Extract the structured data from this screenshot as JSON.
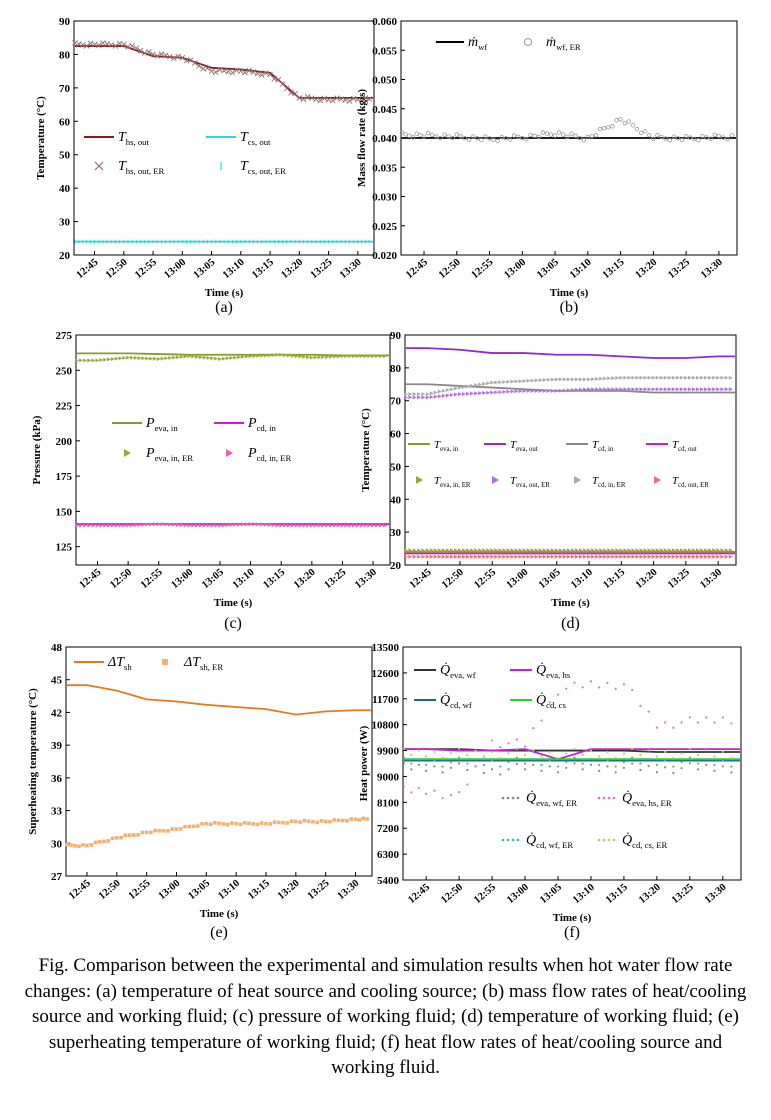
{
  "caption": "Fig. Comparison between the experimental and simulation results when hot water flow rate changes: (a) temperature of heat source and cooling source; (b) mass flow rates of heat/cooling source and working fluid; (c) pressure of working fluid; (d) temperature of working fluid; (e) superheating temperature of working fluid; (f) heat flow rates of heat/cooling source and working fluid.",
  "time_ticks": [
    "12:45",
    "12:50",
    "12:55",
    "13:00",
    "13:05",
    "13:10",
    "13:15",
    "13:20",
    "13:25",
    "13:30"
  ],
  "colors": {
    "dark_red": "#8b1a1a",
    "cyan": "#33d6d6",
    "gray": "#888888",
    "olive": "#8a9a2a",
    "magenta": "#d01cd0",
    "purple": "#8a2bd6",
    "orange": "#e07b1f",
    "light_orange": "#f5b070",
    "green": "#2ecc2e",
    "teal": "#1a6e7a",
    "dark_gray": "#333333"
  },
  "chart_data": [
    {
      "id": "a",
      "type": "line",
      "panel_label": "(a)",
      "xlabel": "Time (s)",
      "ylabel": "Temperature (°C)",
      "ylim": [
        20,
        90
      ],
      "yticks": [
        "20",
        "30",
        "40",
        "50",
        "60",
        "70",
        "80",
        "90"
      ],
      "x": [
        "12:45",
        "12:50",
        "12:55",
        "13:00",
        "13:05",
        "13:10",
        "13:15",
        "13:20",
        "13:25",
        "13:30"
      ],
      "series": [
        {
          "name": "T",
          "sub": "hs, out",
          "style": "line",
          "color": "#8b1a1a",
          "values": [
            82.5,
            82.5,
            79.5,
            79,
            76,
            75.5,
            74.5,
            67,
            67,
            67
          ]
        },
        {
          "name": "T",
          "sub": "cs, out",
          "style": "line",
          "color": "#33d6d6",
          "values": [
            24,
            24,
            24,
            24,
            24,
            24,
            24,
            24,
            24,
            24
          ]
        },
        {
          "name": "T",
          "sub": "hs, out, ER",
          "style": "x",
          "color": "#8a7070",
          "values": [
            83,
            83,
            80,
            79,
            75,
            75,
            74,
            67,
            66.5,
            66.5
          ]
        },
        {
          "name": "T",
          "sub": "cs, out, ER",
          "style": "tick",
          "color": "#33d6d6",
          "values": [
            24,
            24,
            24,
            24,
            24,
            24,
            24,
            24,
            24,
            24
          ]
        }
      ]
    },
    {
      "id": "b",
      "type": "line",
      "panel_label": "(b)",
      "xlabel": "Time (s)",
      "ylabel": "Mass flow rate (kg/s)",
      "ylim": [
        0.02,
        0.06
      ],
      "yticks": [
        "0.020",
        "0.025",
        "0.030",
        "0.035",
        "0.040",
        "0.045",
        "0.050",
        "0.055",
        "0.060"
      ],
      "x": [
        "12:45",
        "12:50",
        "12:55",
        "13:00",
        "13:05",
        "13:10",
        "13:15",
        "13:20",
        "13:25",
        "13:30"
      ],
      "series": [
        {
          "name": "ṁ",
          "sub": "wf",
          "style": "line",
          "color": "#000000",
          "values": [
            0.04,
            0.04,
            0.04,
            0.04,
            0.04,
            0.04,
            0.04,
            0.04,
            0.04,
            0.04
          ]
        },
        {
          "name": "ṁ",
          "sub": "wf, ER",
          "style": "star",
          "color": "#999999",
          "values": [
            0.0405,
            0.0402,
            0.0398,
            0.0401,
            0.0408,
            0.0399,
            0.0432,
            0.0401,
            0.0399,
            0.0402
          ]
        }
      ]
    },
    {
      "id": "c",
      "type": "line",
      "panel_label": "(c)",
      "xlabel": "Time (s)",
      "ylabel": "Pressure (kPa)",
      "ylim": [
        112,
        275
      ],
      "yticks": [
        "125",
        "150",
        "175",
        "200",
        "225",
        "250",
        "275"
      ],
      "x": [
        "12:45",
        "12:50",
        "12:55",
        "13:00",
        "13:05",
        "13:10",
        "13:15",
        "13:20",
        "13:25",
        "13:30"
      ],
      "series": [
        {
          "name": "P",
          "sub": "eva, in",
          "style": "line",
          "color": "#8a9a2a",
          "values": [
            262,
            262,
            261.5,
            261,
            261,
            261,
            261,
            261,
            260.5,
            260.5
          ]
        },
        {
          "name": "P",
          "sub": "cd, in",
          "style": "line",
          "color": "#d01cd0",
          "values": [
            141,
            141,
            141,
            141,
            141,
            141,
            141,
            141,
            141,
            141
          ]
        },
        {
          "name": "P",
          "sub": "eva, in, ER",
          "style": "tri",
          "color": "#9aaa3a",
          "values": [
            257,
            259,
            258,
            260,
            258,
            260,
            261,
            259,
            260,
            260
          ]
        },
        {
          "name": "P",
          "sub": "cd, in, ER",
          "style": "tri",
          "color": "#e060c0",
          "values": [
            140,
            140,
            141,
            140,
            140,
            141,
            140,
            140,
            140,
            140
          ]
        }
      ]
    },
    {
      "id": "d",
      "type": "line",
      "panel_label": "(d)",
      "xlabel": "Time (s)",
      "ylabel": "Temperature (°C)",
      "ylim": [
        20,
        90
      ],
      "yticks": [
        "20",
        "30",
        "40",
        "50",
        "60",
        "70",
        "80",
        "90"
      ],
      "x": [
        "12:45",
        "12:50",
        "12:55",
        "13:00",
        "13:05",
        "13:10",
        "13:15",
        "13:20",
        "13:25",
        "13:30"
      ],
      "series": [
        {
          "name": "T",
          "sub": "eva, in",
          "style": "line",
          "color": "#8a9a2a",
          "values": [
            24,
            24,
            24,
            24,
            24,
            24,
            24,
            24,
            24,
            24
          ]
        },
        {
          "name": "T",
          "sub": "eva, out",
          "style": "line",
          "color": "#8a2bd6",
          "values": [
            86,
            85.5,
            84.5,
            84.5,
            84,
            84,
            83.5,
            83,
            83,
            83.5
          ]
        },
        {
          "name": "T",
          "sub": "cd, in",
          "style": "line",
          "color": "#888888",
          "values": [
            75,
            74.5,
            74,
            73.5,
            73,
            73,
            73,
            72.5,
            72.5,
            72.5
          ]
        },
        {
          "name": "T",
          "sub": "cd, out",
          "style": "line",
          "color": "#d01cd0",
          "values": [
            23.5,
            23.5,
            23.5,
            23.5,
            23.5,
            23.5,
            23.5,
            23.5,
            23.5,
            23.5
          ]
        },
        {
          "name": "T",
          "sub": "eva, in, ER",
          "style": "tri",
          "color": "#9aaa3a",
          "values": [
            24.5,
            24.5,
            24.5,
            24.5,
            24.5,
            24.5,
            24.5,
            24.5,
            24.5,
            24.5
          ]
        },
        {
          "name": "T",
          "sub": "eva, out, ER",
          "style": "tri",
          "color": "#b070e0",
          "values": [
            71,
            72,
            72.5,
            73,
            73,
            73.5,
            73.5,
            73.5,
            73.5,
            73.5
          ]
        },
        {
          "name": "T",
          "sub": "cd, in, ER",
          "style": "tri",
          "color": "#aaaaaa",
          "values": [
            72,
            74,
            75.5,
            76,
            76.5,
            76.5,
            77,
            77,
            77,
            77
          ]
        },
        {
          "name": "T",
          "sub": "cd, out, ER",
          "style": "tri",
          "color": "#f07070",
          "values": [
            22.5,
            22.5,
            22.5,
            22.5,
            22.5,
            22.5,
            22.5,
            22.5,
            22.5,
            22.5
          ]
        }
      ]
    },
    {
      "id": "e",
      "type": "line",
      "panel_label": "(e)",
      "xlabel": "Time (s)",
      "ylabel": "Superheating temperature (°C)",
      "ylim": [
        27,
        48
      ],
      "yticks": [
        "27",
        "30",
        "33",
        "36",
        "39",
        "42",
        "45",
        "48"
      ],
      "x": [
        "12:45",
        "12:50",
        "12:55",
        "13:00",
        "13:05",
        "13:10",
        "13:15",
        "13:20",
        "13:25",
        "13:30"
      ],
      "series": [
        {
          "name": "ΔT",
          "sub": "sh",
          "style": "line",
          "color": "#e07b1f",
          "values": [
            44.5,
            44,
            43.2,
            43,
            42.7,
            42.5,
            42.3,
            41.8,
            42.1,
            42.2
          ]
        },
        {
          "name": "ΔT",
          "sub": "sh, ER",
          "style": "square",
          "color": "#f5b070",
          "values": [
            29.8,
            30.5,
            31,
            31.3,
            31.8,
            31.8,
            31.8,
            32,
            32,
            32.2
          ]
        }
      ]
    },
    {
      "id": "f",
      "type": "line",
      "panel_label": "(f)",
      "xlabel": "Time (s)",
      "ylabel": "Heat power (W)",
      "ylim": [
        5400,
        13500
      ],
      "yticks": [
        "5400",
        "6300",
        "7200",
        "8100",
        "9000",
        "9900",
        "10800",
        "11700",
        "12600",
        "13500"
      ],
      "x": [
        "12:45",
        "12:50",
        "12:55",
        "13:00",
        "13:05",
        "13:10",
        "13:15",
        "13:20",
        "13:25",
        "13:30"
      ],
      "series": [
        {
          "name": "Q̇",
          "sub": "eva, wf",
          "style": "line",
          "color": "#333333",
          "values": [
            9950,
            9950,
            9900,
            9900,
            9900,
            9900,
            9900,
            9850,
            9850,
            9850
          ]
        },
        {
          "name": "Q̇",
          "sub": "eva, hs",
          "style": "line",
          "color": "#d01cd0",
          "values": [
            9950,
            9900,
            9900,
            9950,
            9600,
            9950,
            9950,
            9950,
            9950,
            9950
          ]
        },
        {
          "name": "Q̇",
          "sub": "cd, wf",
          "style": "line",
          "color": "#1a6e7a",
          "values": [
            9550,
            9550,
            9550,
            9550,
            9550,
            9550,
            9550,
            9550,
            9550,
            9550
          ]
        },
        {
          "name": "Q̇",
          "sub": "cd, cs",
          "style": "line",
          "color": "#2ecc2e",
          "values": [
            9600,
            9600,
            9600,
            9600,
            9600,
            9600,
            9600,
            9600,
            9600,
            9600
          ]
        },
        {
          "name": "Q̇",
          "sub": "eva, wf, ER",
          "style": "dot",
          "color": "#888888",
          "values": [
            9300,
            9300,
            9200,
            9300,
            9300,
            9300,
            9300,
            9250,
            9300,
            9300
          ]
        },
        {
          "name": "Q̇",
          "sub": "eva, hs, ER",
          "style": "dot",
          "color": "#e070d0",
          "values": [
            8500,
            8300,
            10200,
            10100,
            12000,
            12200,
            12200,
            10800,
            10900,
            11000
          ]
        },
        {
          "name": "Q̇",
          "sub": "cd, wf, ER",
          "style": "dot",
          "color": "#40b0c0",
          "values": [
            9500,
            9500,
            9500,
            9500,
            9500,
            9500,
            9500,
            9500,
            9500,
            9500
          ]
        },
        {
          "name": "Q̇",
          "sub": "cd, cs, ER",
          "style": "dot",
          "color": "#90e060",
          "values": [
            9800,
            9800,
            9800,
            9800,
            9800,
            9800,
            9800,
            9800,
            9800,
            9800
          ]
        }
      ]
    }
  ]
}
